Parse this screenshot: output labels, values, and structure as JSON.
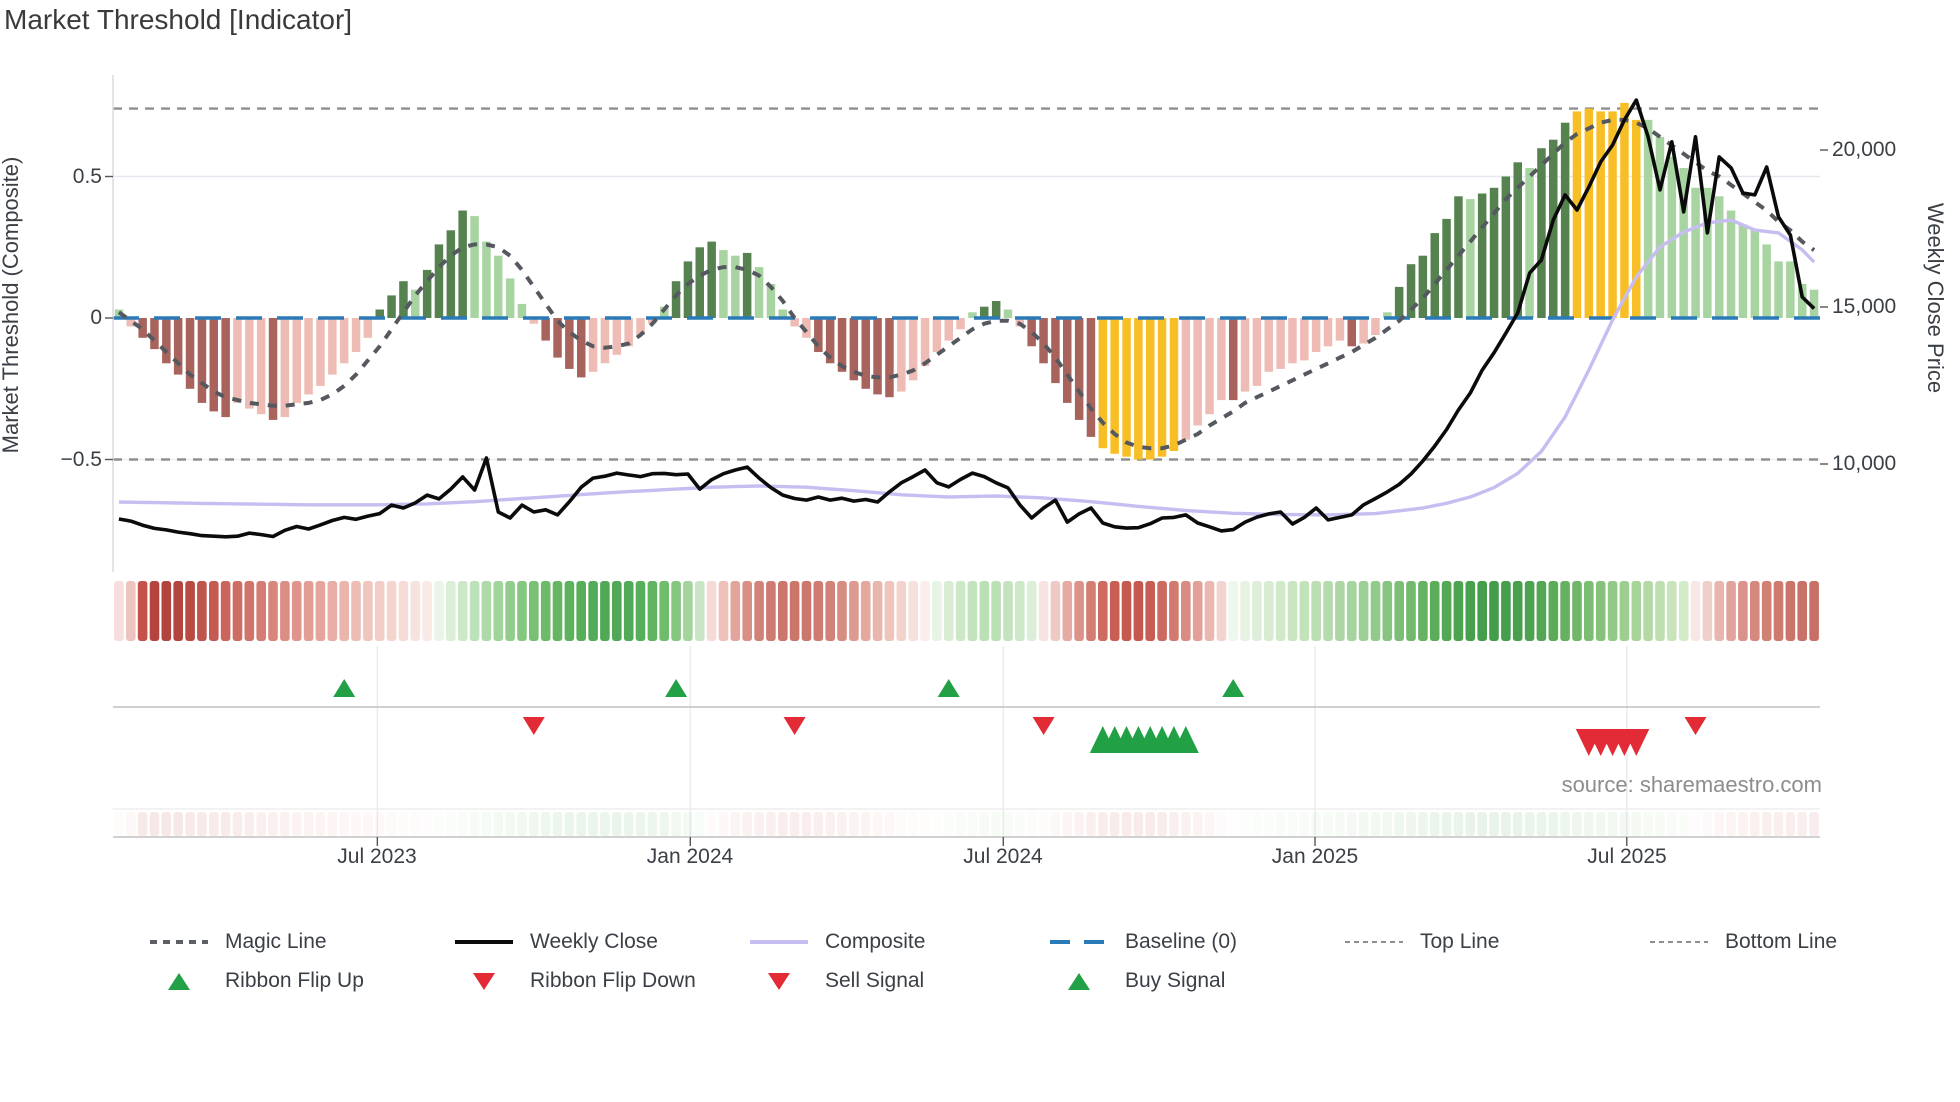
{
  "title": "Market Threshold [Indicator]",
  "source_credit": "source: sharemaestro.com",
  "axes": {
    "left_label": "Market Threshold (Composite)",
    "right_label": "Weekly Close Price",
    "left_ticks": [
      {
        "v": 0.5,
        "label": "0.5"
      },
      {
        "v": 0,
        "label": "0"
      },
      {
        "v": -0.5,
        "label": "−0.5"
      }
    ],
    "right_ticks": [
      {
        "p": 20000,
        "label": "20,000"
      },
      {
        "p": 15000,
        "label": "15,000"
      },
      {
        "p": 10000,
        "label": "10,000"
      }
    ],
    "x_ticks": [
      {
        "pos": 21.8,
        "label": "Jul 2023"
      },
      {
        "pos": 48.2,
        "label": "Jan 2024"
      },
      {
        "pos": 74.6,
        "label": "Jul 2024"
      },
      {
        "pos": 100.9,
        "label": "Jan 2025"
      },
      {
        "pos": 127.2,
        "label": "Jul 2025"
      }
    ]
  },
  "reference": {
    "baseline": 0,
    "top_line": 0.74,
    "bottom_line": -0.5,
    "midgrid": 0.5
  },
  "colors": {
    "bar_dark_green": "#55824f",
    "bar_light_green": "#a7d4a0",
    "bar_dark_red": "#a8645c",
    "bar_light_red": "#eebcb4",
    "bar_gold": "#f8be26",
    "magic_line": "#55595f",
    "weekly_close": "#0b0b0b",
    "composite_line": "#c6bef1",
    "baseline_blue": "#2a7ab8",
    "ref_dash_gray": "#8f8f8f",
    "signal_green": "#22a045",
    "signal_red": "#e22b36",
    "grid_light": "#e4e8ef",
    "panel_line": "#c9c9c9",
    "spine": "#d9dce1"
  },
  "legend": {
    "items": [
      {
        "label": "Magic Line",
        "swatch": "dotted-gray"
      },
      {
        "label": "Weekly Close",
        "swatch": "solid-black"
      },
      {
        "label": "Composite",
        "swatch": "solid-lavender"
      },
      {
        "label": "Baseline (0)",
        "swatch": "dashed-blue"
      },
      {
        "label": "Top Line",
        "swatch": "dotted-fine"
      },
      {
        "label": "Bottom Line",
        "swatch": "dotted-fine"
      },
      {
        "label": "Ribbon Flip Up",
        "swatch": "tri-up-green"
      },
      {
        "label": "Ribbon Flip Down",
        "swatch": "tri-down-red"
      },
      {
        "label": "Sell Signal",
        "swatch": "tri-down-red"
      },
      {
        "label": "Buy Signal",
        "swatch": "tri-up-green"
      }
    ]
  },
  "chart_data": {
    "type": "mixed",
    "title": "Market Threshold [Indicator]",
    "weeks": 144,
    "ylim_composite": [
      -0.78,
      0.86
    ],
    "ylim_price_labels": [
      10000,
      20000
    ],
    "composite_bars": {
      "values": [
        0.03,
        -0.03,
        -0.07,
        -0.11,
        -0.16,
        -0.2,
        -0.25,
        -0.3,
        -0.33,
        -0.35,
        -0.3,
        -0.32,
        -0.34,
        -0.36,
        -0.35,
        -0.3,
        -0.27,
        -0.24,
        -0.2,
        -0.16,
        -0.12,
        -0.07,
        0.03,
        0.08,
        0.13,
        0.1,
        0.17,
        0.26,
        0.31,
        0.38,
        0.36,
        0.27,
        0.22,
        0.14,
        0.05,
        -0.02,
        -0.08,
        -0.14,
        -0.18,
        -0.21,
        -0.19,
        -0.16,
        -0.13,
        -0.1,
        -0.06,
        -0.02,
        0.04,
        0.13,
        0.2,
        0.25,
        0.27,
        0.24,
        0.22,
        0.23,
        0.18,
        0.12,
        0.03,
        -0.03,
        -0.07,
        -0.12,
        -0.16,
        -0.19,
        -0.22,
        -0.25,
        -0.27,
        -0.28,
        -0.26,
        -0.22,
        -0.17,
        -0.12,
        -0.08,
        -0.04,
        0.02,
        0.04,
        0.06,
        0.03,
        -0.03,
        -0.1,
        -0.16,
        -0.23,
        -0.3,
        -0.36,
        -0.42,
        -0.46,
        -0.48,
        -0.49,
        -0.5,
        -0.5,
        -0.49,
        -0.47,
        -0.43,
        -0.38,
        -0.34,
        -0.29,
        -0.29,
        -0.26,
        -0.24,
        -0.19,
        -0.18,
        -0.16,
        -0.15,
        -0.12,
        -0.1,
        -0.08,
        -0.1,
        -0.09,
        -0.06,
        0.02,
        0.11,
        0.19,
        0.22,
        0.3,
        0.35,
        0.43,
        0.42,
        0.44,
        0.46,
        0.5,
        0.55,
        0.53,
        0.6,
        0.63,
        0.69,
        0.73,
        0.74,
        0.73,
        0.73,
        0.76,
        0.7,
        0.7,
        0.64,
        0.57,
        0.53,
        0.46,
        0.46,
        0.43,
        0.38,
        0.33,
        0.31,
        0.26,
        0.2,
        0.2,
        0.12,
        0.1
      ],
      "color_keys": [
        "lg",
        "lr",
        "dr",
        "dr",
        "dr",
        "dr",
        "dr",
        "dr",
        "dr",
        "dr",
        "lr",
        "lr",
        "lr",
        "dr",
        "lr",
        "lr",
        "lr",
        "lr",
        "lr",
        "lr",
        "lr",
        "lr",
        "dg",
        "dg",
        "dg",
        "lg",
        "dg",
        "dg",
        "dg",
        "dg",
        "lg",
        "lg",
        "lg",
        "lg",
        "lg",
        "lr",
        "dr",
        "dr",
        "dr",
        "dr",
        "lr",
        "lr",
        "lr",
        "lr",
        "lr",
        "lr",
        "lg",
        "dg",
        "dg",
        "dg",
        "dg",
        "lg",
        "lg",
        "dg",
        "lg",
        "lg",
        "lg",
        "lr",
        "lr",
        "dr",
        "dr",
        "dr",
        "dr",
        "dr",
        "dr",
        "dr",
        "lr",
        "lr",
        "lr",
        "lr",
        "lr",
        "lr",
        "lg",
        "dg",
        "dg",
        "lg",
        "lr",
        "dr",
        "dr",
        "dr",
        "dr",
        "dr",
        "dr",
        "gold",
        "gold",
        "gold",
        "gold",
        "gold",
        "gold",
        "gold",
        "lr",
        "lr",
        "lr",
        "lr",
        "dr",
        "lr",
        "lr",
        "lr",
        "lr",
        "lr",
        "lr",
        "lr",
        "lr",
        "lr",
        "dr",
        "lr",
        "lr",
        "lg",
        "dg",
        "dg",
        "dg",
        "dg",
        "dg",
        "dg",
        "lg",
        "dg",
        "dg",
        "dg",
        "dg",
        "lg",
        "dg",
        "dg",
        "dg",
        "gold",
        "gold",
        "gold",
        "gold",
        "gold",
        "gold",
        "lg",
        "lg",
        "lg",
        "lg",
        "lg",
        "lg",
        "lg",
        "lg",
        "lg",
        "lg",
        "lg",
        "lg",
        "lg",
        "lg",
        "lg"
      ]
    },
    "magic_line": [
      0.02,
      -0.01,
      -0.04,
      -0.08,
      -0.12,
      -0.16,
      -0.2,
      -0.23,
      -0.26,
      -0.28,
      -0.29,
      -0.3,
      -0.305,
      -0.31,
      -0.31,
      -0.305,
      -0.3,
      -0.29,
      -0.27,
      -0.24,
      -0.2,
      -0.15,
      -0.1,
      -0.04,
      0.02,
      0.08,
      0.13,
      0.18,
      0.22,
      0.25,
      0.26,
      0.26,
      0.25,
      0.22,
      0.17,
      0.11,
      0.05,
      -0.01,
      -0.05,
      -0.08,
      -0.1,
      -0.105,
      -0.1,
      -0.09,
      -0.06,
      -0.02,
      0.03,
      0.08,
      0.12,
      0.15,
      0.17,
      0.18,
      0.18,
      0.17,
      0.15,
      0.11,
      0.06,
      0.0,
      -0.05,
      -0.1,
      -0.14,
      -0.17,
      -0.19,
      -0.205,
      -0.21,
      -0.21,
      -0.2,
      -0.185,
      -0.16,
      -0.13,
      -0.1,
      -0.07,
      -0.04,
      -0.02,
      -0.01,
      -0.01,
      -0.02,
      -0.05,
      -0.09,
      -0.14,
      -0.2,
      -0.26,
      -0.32,
      -0.37,
      -0.41,
      -0.44,
      -0.455,
      -0.46,
      -0.46,
      -0.45,
      -0.43,
      -0.41,
      -0.38,
      -0.355,
      -0.33,
      -0.3,
      -0.28,
      -0.26,
      -0.24,
      -0.22,
      -0.2,
      -0.18,
      -0.16,
      -0.14,
      -0.12,
      -0.095,
      -0.07,
      -0.04,
      -0.01,
      0.03,
      0.07,
      0.12,
      0.17,
      0.22,
      0.27,
      0.32,
      0.37,
      0.42,
      0.46,
      0.5,
      0.54,
      0.58,
      0.62,
      0.65,
      0.67,
      0.69,
      0.7,
      0.7,
      0.69,
      0.67,
      0.64,
      0.61,
      0.58,
      0.55,
      0.52,
      0.5,
      0.47,
      0.44,
      0.41,
      0.38,
      0.34,
      0.31,
      0.27,
      0.24
    ],
    "weekly_close": [
      8250,
      8180,
      8050,
      7950,
      7900,
      7830,
      7780,
      7720,
      7700,
      7680,
      7700,
      7800,
      7750,
      7690,
      7890,
      8010,
      7930,
      8060,
      8200,
      8300,
      8240,
      8340,
      8420,
      8690,
      8600,
      8760,
      9010,
      8890,
      9200,
      9590,
      9170,
      10190,
      8470,
      8280,
      8690,
      8470,
      8540,
      8380,
      8800,
      9260,
      9550,
      9610,
      9710,
      9650,
      9600,
      9690,
      9700,
      9660,
      9680,
      9200,
      9500,
      9690,
      9810,
      9900,
      9550,
      9250,
      9010,
      8900,
      8850,
      8950,
      8850,
      8910,
      8820,
      8870,
      8790,
      9110,
      9400,
      9600,
      9810,
      9400,
      9270,
      9510,
      9710,
      9600,
      9400,
      9240,
      8700,
      8280,
      8600,
      8850,
      8150,
      8410,
      8600,
      8120,
      8000,
      7960,
      7970,
      8100,
      8280,
      8300,
      8380,
      8120,
      8000,
      7870,
      7910,
      8150,
      8310,
      8410,
      8470,
      8090,
      8300,
      8600,
      8220,
      8300,
      8380,
      8700,
      8900,
      9110,
      9350,
      9680,
      10100,
      10570,
      11100,
      11720,
      12260,
      12990,
      13540,
      14170,
      14810,
      16080,
      16500,
      17770,
      18570,
      18090,
      18820,
      19620,
      20160,
      20960,
      21590,
      20420,
      18730,
      20260,
      18030,
      20420,
      17360,
      19780,
      19430,
      18630,
      18570,
      19460,
      17870,
      17290,
      15320,
      14950
    ],
    "composite_price": [
      8790,
      8784,
      8778,
      8771,
      8765,
      8759,
      8753,
      8746,
      8740,
      8735,
      8730,
      8725,
      8720,
      8715,
      8710,
      8705,
      8700,
      8700,
      8700,
      8700,
      8700,
      8700,
      8700,
      8708,
      8715,
      8723,
      8730,
      8748,
      8765,
      8783,
      8800,
      8825,
      8850,
      8875,
      8900,
      8925,
      8950,
      8975,
      9000,
      9025,
      9050,
      9075,
      9100,
      9120,
      9140,
      9160,
      9180,
      9200,
      9220,
      9240,
      9260,
      9270,
      9280,
      9290,
      9300,
      9290,
      9280,
      9270,
      9260,
      9233,
      9205,
      9178,
      9150,
      9118,
      9085,
      9053,
      9020,
      9003,
      8985,
      8968,
      8950,
      8958,
      8965,
      8973,
      8980,
      8965,
      8950,
      8935,
      8920,
      8890,
      8860,
      8830,
      8800,
      8763,
      8725,
      8688,
      8650,
      8618,
      8585,
      8553,
      8520,
      8498,
      8475,
      8453,
      8430,
      8420,
      8410,
      8400,
      8390,
      8388,
      8385,
      8383,
      8380,
      8390,
      8400,
      8410,
      8420,
      8465,
      8510,
      8555,
      8600,
      8675,
      8750,
      8850,
      8950,
      9100,
      9250,
      9475,
      9700,
      10050,
      10400,
      10950,
      11500,
      12245,
      12990,
      13790,
      14590,
      15275,
      15960,
      16435,
      16910,
      17150,
      17390,
      17535,
      17680,
      17725,
      17770,
      17610,
      17450,
      17405,
      17360,
      17090,
      16820,
      16430
    ],
    "ribbon_colors": [
      "#f6dedd",
      "#eec4c1",
      "#c4524a",
      "#b4453e",
      "#b2443d",
      "#b4453e",
      "#b84a42",
      "#bf544c",
      "#c45b52",
      "#c9655c",
      "#cd6d64",
      "#d1756c",
      "#d57d74",
      "#d8857c",
      "#dc8d84",
      "#df958c",
      "#e29d94",
      "#e5a59c",
      "#e8ada4",
      "#eab5ac",
      "#edbdb5",
      "#efc5bd",
      "#f1cdc5",
      "#f3d5ce",
      "#f5dcd6",
      "#f7e3de",
      "#f9eae6",
      "#eaf5e7",
      "#dbeed7",
      "#cce8c7",
      "#bde1b8",
      "#aedaa9",
      "#a0d49a",
      "#92cd8c",
      "#85c77f",
      "#78c073",
      "#6dbb69",
      "#64b662",
      "#5db25e",
      "#57ae5b",
      "#53ab59",
      "#51a958",
      "#50a857",
      "#52aa58",
      "#57ae5b",
      "#60b360",
      "#6fbc6b",
      "#84c67e",
      "#a2d49c",
      "#c8e6c3",
      "#f5dad5",
      "#eec0ba",
      "#e3a49b",
      "#d98f85",
      "#d28379",
      "#ce7b71",
      "#cc776d",
      "#cb756b",
      "#cc776d",
      "#ce7b71",
      "#d28379",
      "#d88d83",
      "#de9a91",
      "#e4a89f",
      "#e9b6ae",
      "#eec4bd",
      "#f2d2cc",
      "#f6e0db",
      "#faeeea",
      "#e7f3e3",
      "#d9edd4",
      "#cce8c7",
      "#c2e3bd",
      "#bce0b6",
      "#bce0b6",
      "#c2e3bd",
      "#cce8c7",
      "#dceed7",
      "#f7e3df",
      "#efc9c4",
      "#e5aaa2",
      "#dc9189",
      "#d47d73",
      "#cd6b61",
      "#c85f55",
      "#c5594f",
      "#c5594f",
      "#c75d53",
      "#cc6a60",
      "#d37a70",
      "#da8c83",
      "#e2a098",
      "#eab8b0",
      "#f2d3cd",
      "#eef7eb",
      "#e6f3e2",
      "#deefd9",
      "#d7ecd1",
      "#d0e9c9",
      "#c9e5c2",
      "#c2e2ba",
      "#bbdfb3",
      "#b4dbac",
      "#acd7a4",
      "#a5d49e",
      "#9ccf95",
      "#92ca8b",
      "#88c481",
      "#7dbe77",
      "#72b86d",
      "#67b263",
      "#5dac5a",
      "#54a754",
      "#4da350",
      "#48a04d",
      "#459e4b",
      "#449d4a",
      "#459e4b",
      "#489f4d",
      "#4da250",
      "#54a654",
      "#5cab59",
      "#66b160",
      "#70b768",
      "#7bbd72",
      "#86c27c",
      "#92c986",
      "#9dce90",
      "#a8d49a",
      "#b3daa5",
      "#bedfb0",
      "#c9e4bb",
      "#d5eac7",
      "#f8e8e5",
      "#f0cfca",
      "#e8b6af",
      "#e1a49c",
      "#da938a",
      "#d5887e",
      "#d18074",
      "#ce7a6e",
      "#cb756a",
      "#c97168",
      "#c86f66"
    ],
    "signals": {
      "ribbon_flip_up": [
        19,
        47,
        70,
        94
      ],
      "ribbon_flip_down": [
        35,
        57,
        78,
        133
      ],
      "buy": [
        83,
        84,
        85,
        86,
        87,
        88,
        89,
        90
      ],
      "sell": [
        124,
        125,
        126,
        127,
        128
      ]
    }
  }
}
